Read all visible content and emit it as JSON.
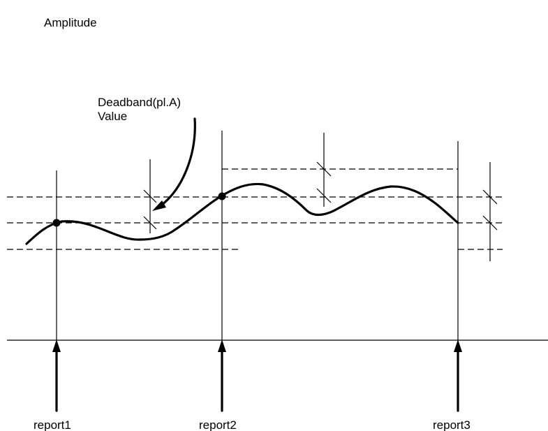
{
  "labels": {
    "y_axis": "Amplitude",
    "deadband_line1": "Deadband(pl.A)",
    "deadband_line2": "Value",
    "report1": "report1",
    "report2": "report2",
    "report3": "report3"
  },
  "colors": {
    "stroke": "#000000",
    "background": "#ffffff"
  }
}
